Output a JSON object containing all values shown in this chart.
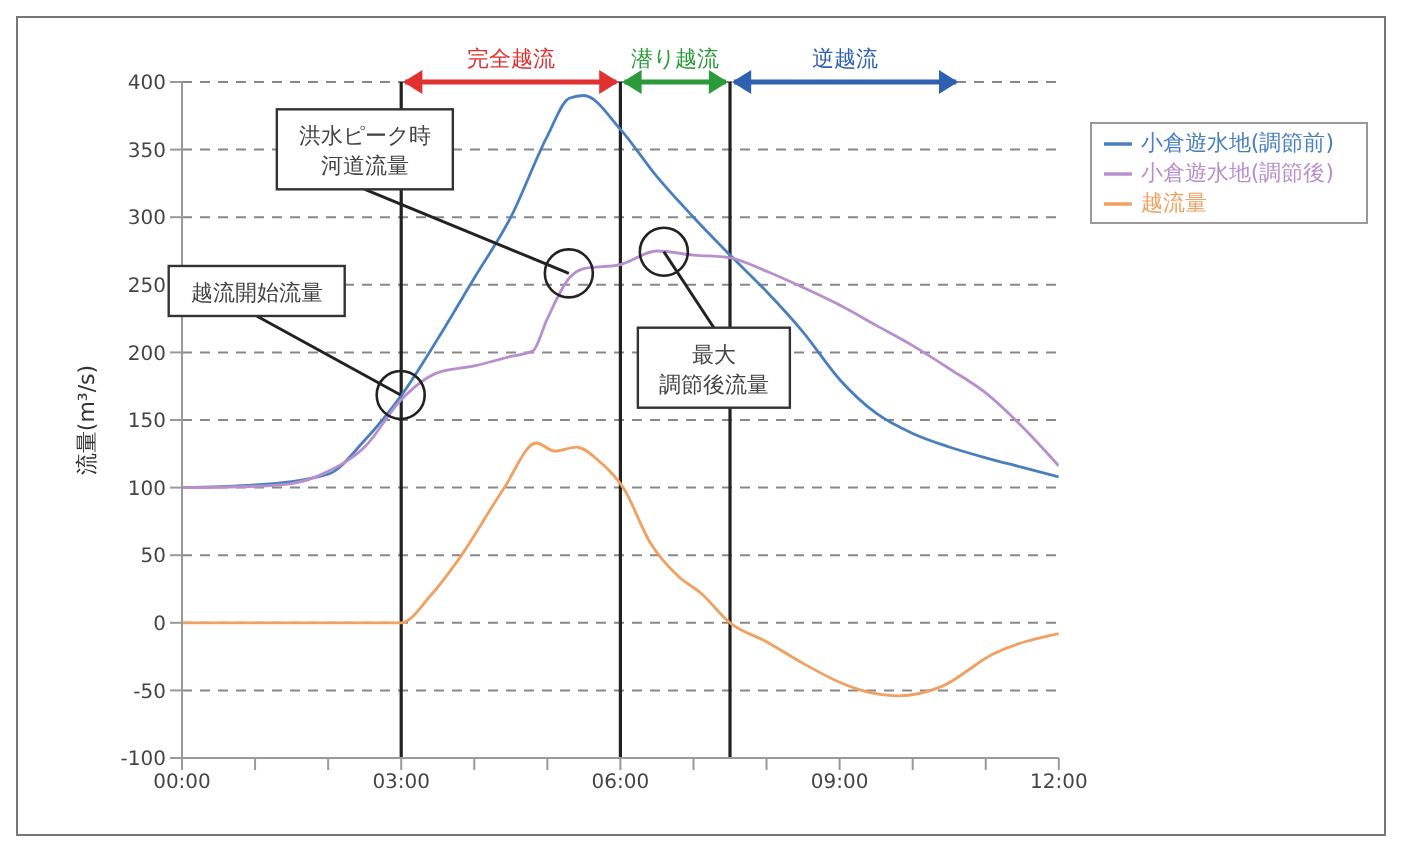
{
  "chart_data": {
    "type": "line",
    "ylabel": "流量(m³/s)",
    "xlim": [
      0,
      12
    ],
    "xticks": [
      {
        "value": 0,
        "label": "00:00"
      },
      {
        "value": 1,
        "label": null
      },
      {
        "value": 2,
        "label": null
      },
      {
        "value": 3,
        "label": "03:00"
      },
      {
        "value": 4,
        "label": null
      },
      {
        "value": 5,
        "label": null
      },
      {
        "value": 6,
        "label": "06:00"
      },
      {
        "value": 7,
        "label": null
      },
      {
        "value": 8,
        "label": null
      },
      {
        "value": 9,
        "label": "09:00"
      },
      {
        "value": 10,
        "label": null
      },
      {
        "value": 11,
        "label": null
      },
      {
        "value": 12,
        "label": "12:00"
      }
    ],
    "ylim": [
      -100,
      400
    ],
    "yticks": [
      -100,
      -50,
      0,
      50,
      100,
      150,
      200,
      250,
      300,
      350,
      400
    ],
    "grid": "y",
    "legend": "top right",
    "marker": "none",
    "line_style": "solid",
    "series": [
      {
        "name": "小倉遊水地(調節前)",
        "color": "#4a7fbf",
        "x": [
          0,
          1,
          2,
          2.5,
          3,
          3.5,
          4,
          4.5,
          5,
          5.3,
          5.5,
          6,
          6.5,
          7,
          7.5,
          8,
          8.5,
          9,
          9.5,
          10,
          10.5,
          11,
          11.5,
          12
        ],
        "values": [
          100,
          102,
          110,
          135,
          168,
          210,
          255,
          300,
          360,
          388,
          390,
          365,
          330,
          300,
          272,
          245,
          215,
          180,
          155,
          140,
          130,
          122,
          115,
          108
        ]
      },
      {
        "name": "小倉遊水地(調節後)",
        "color": "#b88fcc",
        "x": [
          0,
          1,
          1.5,
          2,
          2.5,
          3,
          3.5,
          4,
          4.5,
          4.8,
          5,
          5.3,
          5.5,
          6,
          6.5,
          7,
          7.5,
          8,
          8.5,
          9,
          9.5,
          10,
          10.5,
          11,
          11.5,
          12
        ],
        "values": [
          100,
          101,
          103,
          112,
          130,
          165,
          185,
          190,
          197,
          201,
          225,
          255,
          262,
          265,
          275,
          272,
          270,
          260,
          248,
          235,
          220,
          205,
          188,
          170,
          145,
          116
        ]
      },
      {
        "name": "越流量",
        "color": "#f0a060",
        "x": [
          0,
          3,
          3.4,
          3.8,
          4.4,
          4.85,
          5.1,
          5.4,
          5.7,
          6.05,
          6.4,
          6.8,
          7.1,
          7.5,
          8,
          8.5,
          9,
          9.3,
          9.8,
          10.4,
          11.1,
          12
        ],
        "values": [
          0,
          0,
          20,
          48,
          99,
          133,
          127,
          130,
          120,
          99,
          60,
          34,
          22,
          0,
          -14,
          -30,
          -44,
          -50,
          -54,
          -47,
          -23,
          -8
        ]
      }
    ],
    "ref_lines": [
      {
        "axis": "x",
        "value": 3,
        "color": "#222222"
      },
      {
        "axis": "x",
        "value": 6,
        "color": "#222222"
      },
      {
        "axis": "x",
        "value": 7.5,
        "color": "#222222"
      }
    ],
    "annotations": [
      {
        "text": "越流開始流量",
        "x": 3,
        "y": 168
      },
      {
        "text": "洪水ピーク時河道流量",
        "x": 5.3,
        "y": 258
      },
      {
        "text": "最大調節後流量",
        "x": 6.6,
        "y": 274
      },
      "完全越流",
      "潜り越流",
      "逆越流"
    ]
  }
}
